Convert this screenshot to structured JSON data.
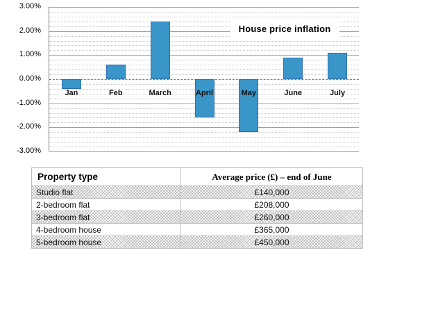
{
  "chart_data": [
    {
      "type": "bar",
      "title": "House price inflation",
      "categories": [
        "Jan",
        "Feb",
        "March",
        "April",
        "May",
        "June",
        "July"
      ],
      "values": [
        -0.4,
        0.6,
        2.4,
        -1.6,
        -2.2,
        0.9,
        1.1
      ],
      "unit": "%",
      "xlabel": "",
      "ylabel": "",
      "ylim": [
        -3,
        3
      ],
      "y_major_step": 1,
      "y_minor_step": 0.2,
      "y_ticks": [
        {
          "value": 3,
          "label": "3.00%"
        },
        {
          "value": 2,
          "label": "2.00%"
        },
        {
          "value": 1,
          "label": "1.00%"
        },
        {
          "value": 0,
          "label": "0.00%"
        },
        {
          "value": -1,
          "label": "-1.00%"
        },
        {
          "value": -2,
          "label": "-2.00%"
        },
        {
          "value": -3,
          "label": "-3.00%"
        }
      ],
      "grid": true,
      "legend_position": "inside-top-right",
      "bar_fill": "#3A96C9",
      "bar_border": "#2F6DB0"
    },
    {
      "type": "table",
      "columns": [
        "Property type",
        "Average price (£) – end of June"
      ],
      "rows": [
        [
          "Studio flat",
          "£140,000"
        ],
        [
          "2-bedroom flat",
          "£208,000"
        ],
        [
          "3-bedroom flat",
          "£260,000"
        ],
        [
          "4-bedroom house",
          "£365,000"
        ],
        [
          "5-bedroom house",
          "£450,000"
        ]
      ],
      "shaded_row_indices": [
        0,
        2,
        4
      ]
    }
  ]
}
